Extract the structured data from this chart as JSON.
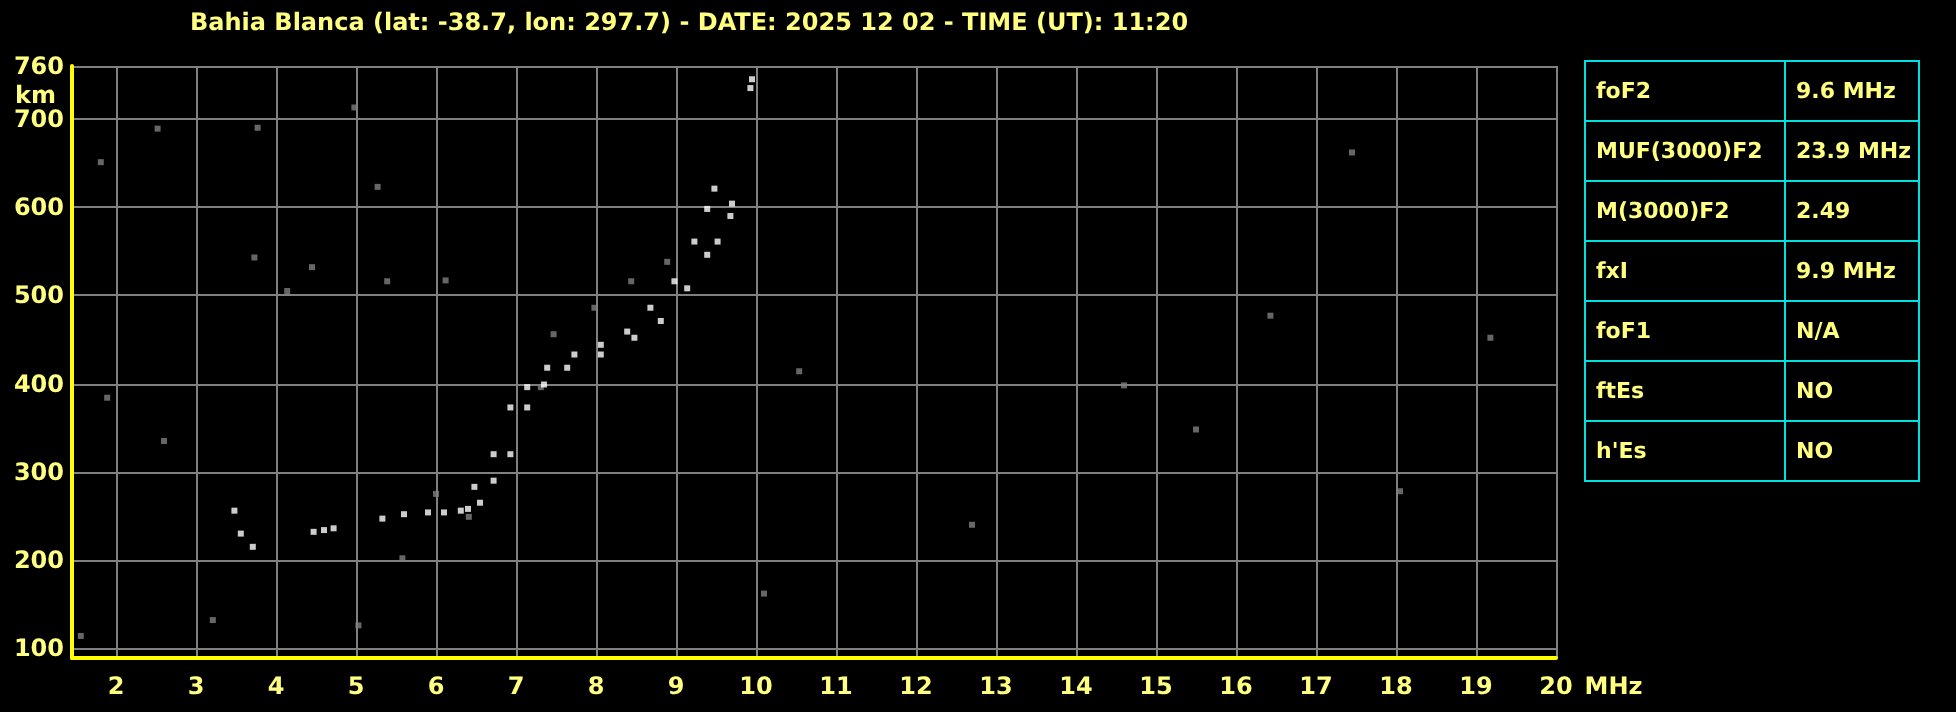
{
  "chart_data": [
    {
      "type": "scatter",
      "title": "Bahia Blanca (lat: -38.7, lon: 297.7) - DATE: 2025 12 02 - TIME (UT): 11:20",
      "xlabel": "MHz",
      "ylabel": "km",
      "xlim": [
        1.45,
        20
      ],
      "ylim": [
        89,
        760
      ],
      "xticks": [
        2,
        3,
        4,
        5,
        6,
        7,
        8,
        9,
        10,
        11,
        12,
        13,
        14,
        15,
        16,
        17,
        18,
        19,
        20
      ],
      "yticks": [
        100,
        200,
        300,
        400,
        500,
        600,
        700,
        760
      ],
      "grid": true,
      "marker": "square",
      "series": [
        {
          "color": "#808080",
          "x": [
            1.81,
            2.52,
            3.77,
            4.98,
            5.27,
            1.89,
            2.6,
            5.39,
            6.12,
            4.14,
            4.45,
            3.73,
            1.56,
            3.21,
            5.58,
            5.03,
            10.1,
            10.54,
            7.47,
            7.98,
            8.44,
            8.89,
            6.0,
            6.41,
            7.31,
            14.6,
            15.5,
            18.05,
            12.7,
            17.45,
            19.18,
            16.43
          ],
          "values": [
            651,
            689,
            690,
            713,
            623,
            384,
            335,
            516,
            517,
            505,
            532,
            543,
            114,
            132,
            202,
            126,
            162,
            414,
            456,
            486,
            516,
            538,
            275,
            249,
            396,
            398,
            348,
            278,
            240,
            662,
            452,
            477
          ]
        },
        {
          "color": "#ffffff",
          "x": [
            5.33,
            5.6,
            5.9,
            6.1,
            6.31,
            6.48,
            6.72,
            6.93,
            7.14,
            7.39,
            7.73,
            8.06,
            8.39,
            8.68,
            8.98,
            9.23,
            9.39,
            9.48,
            3.48,
            3.56,
            3.71,
            4.47,
            4.6,
            4.72
          ],
          "values": [
            247,
            252,
            254,
            254,
            256,
            283,
            320,
            373,
            396,
            418,
            433,
            444,
            459,
            486,
            516,
            561,
            598,
            621,
            256,
            230,
            215,
            232,
            234,
            236
          ]
        },
        {
          "color": "#ffffff",
          "x": [
            6.4,
            6.55,
            6.72,
            6.93,
            7.14,
            7.35,
            7.64,
            8.06,
            8.48,
            8.81,
            9.14,
            9.39,
            9.52,
            9.68,
            9.7,
            9.93,
            9.95
          ],
          "values": [
            258,
            265,
            290,
            320,
            373,
            399,
            418,
            433,
            452,
            471,
            508,
            546,
            561,
            590,
            604,
            735,
            745
          ]
        }
      ]
    },
    {
      "type": "other",
      "annotations": [
        "foF2",
        "9.6 MHz",
        "MUF(3000)F2",
        "23.9 MHz",
        "M(3000)F2",
        "2.49",
        "fxI",
        "9.9 MHz",
        "foF1",
        "N/A",
        "ftEs",
        "NO",
        "h'Es",
        "NO"
      ]
    }
  ]
}
